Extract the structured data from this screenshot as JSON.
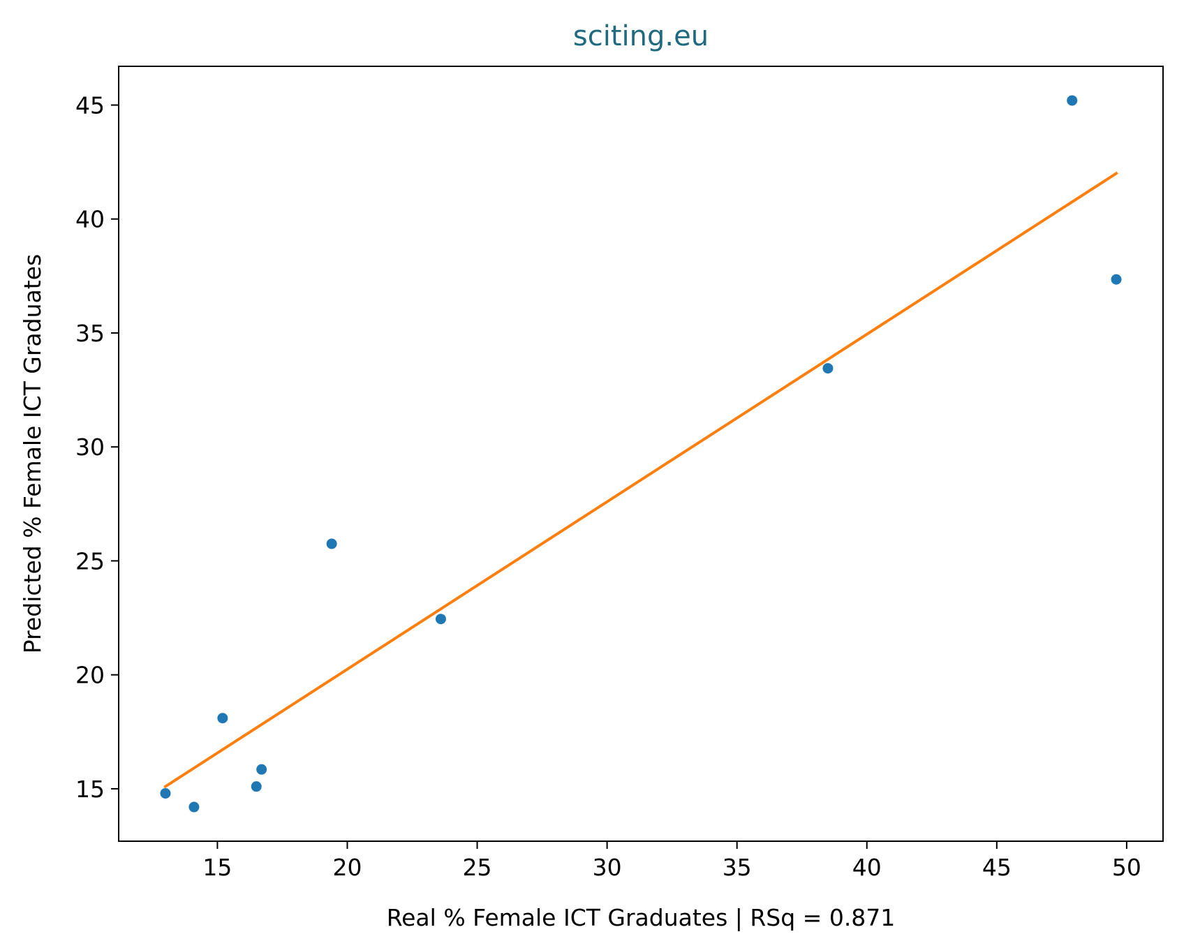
{
  "chart_data": {
    "type": "scatter",
    "title": "sciting.eu",
    "title_color": "#1f6a7f",
    "xlabel": "Real % Female ICT Graduates | RSq = 0.871",
    "ylabel": "Predicted % Female ICT Graduates",
    "xlim": [
      11.2,
      51.4
    ],
    "ylim": [
      12.7,
      46.7
    ],
    "xticks": [
      15,
      20,
      25,
      30,
      35,
      40,
      45,
      50
    ],
    "yticks": [
      15,
      20,
      25,
      30,
      35,
      40,
      45
    ],
    "grid": false,
    "series": [
      {
        "kind": "points",
        "color": "#1f77b4",
        "x": [
          13.0,
          14.1,
          15.2,
          16.5,
          16.7,
          19.4,
          23.6,
          38.5,
          47.9,
          49.6
        ],
        "y": [
          14.8,
          14.2,
          18.1,
          15.1,
          15.85,
          25.75,
          22.45,
          33.45,
          45.2,
          37.35
        ]
      },
      {
        "kind": "fit-line",
        "color": "#ff7f0e",
        "x": [
          13.0,
          49.6
        ],
        "y": [
          15.1,
          42.0
        ]
      }
    ]
  }
}
